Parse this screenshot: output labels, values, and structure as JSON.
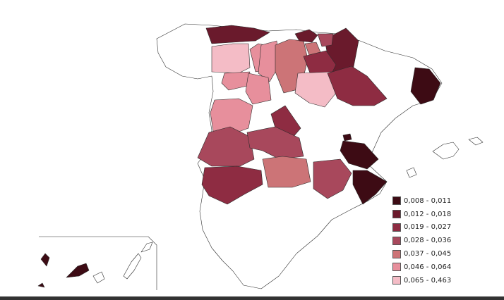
{
  "map": {
    "legend": [
      {
        "label": "0,008 - 0,011",
        "color": "#3d0b14"
      },
      {
        "label": "0,012 - 0,018",
        "color": "#6a1a2c"
      },
      {
        "label": "0,019 - 0,027",
        "color": "#8e2c42"
      },
      {
        "label": "0,028 - 0,036",
        "color": "#a8485c"
      },
      {
        "label": "0,037 - 0,045",
        "color": "#cc7477"
      },
      {
        "label": "0,046 - 0,064",
        "color": "#e78f9c"
      },
      {
        "label": "0,065 - 0,463",
        "color": "#f4bcc6"
      }
    ]
  }
}
